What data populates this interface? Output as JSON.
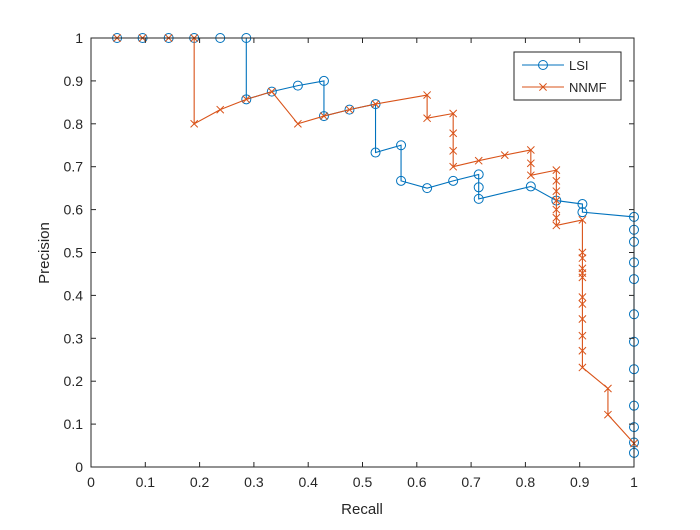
{
  "chart_data": {
    "type": "line",
    "title": "",
    "xlabel": "Recall",
    "ylabel": "Precision",
    "xlim": [
      0,
      1
    ],
    "ylim": [
      0,
      1
    ],
    "xticks": [
      "0",
      "0.1",
      "0.2",
      "0.3",
      "0.4",
      "0.5",
      "0.6",
      "0.7",
      "0.8",
      "0.9",
      "1"
    ],
    "yticks": [
      "0",
      "0.1",
      "0.2",
      "0.3",
      "0.4",
      "0.5",
      "0.6",
      "0.7",
      "0.8",
      "0.9",
      "1"
    ],
    "grid": false,
    "legend_position": "top-right",
    "series": [
      {
        "name": "LSI",
        "color": "#0072BD",
        "marker": "circle",
        "points": [
          [
            0.048,
            1.0
          ],
          [
            0.095,
            1.0
          ],
          [
            0.143,
            1.0
          ],
          [
            0.19,
            1.0
          ],
          [
            0.238,
            1.0
          ],
          [
            0.286,
            1.0
          ],
          [
            0.286,
            0.857
          ],
          [
            0.333,
            0.875
          ],
          [
            0.381,
            0.889
          ],
          [
            0.429,
            0.9
          ],
          [
            0.429,
            0.818
          ],
          [
            0.476,
            0.833
          ],
          [
            0.524,
            0.846
          ],
          [
            0.524,
            0.733
          ],
          [
            0.571,
            0.75
          ],
          [
            0.571,
            0.667
          ],
          [
            0.619,
            0.65
          ],
          [
            0.667,
            0.667
          ],
          [
            0.714,
            0.682
          ],
          [
            0.714,
            0.652
          ],
          [
            0.714,
            0.625
          ],
          [
            0.81,
            0.654
          ],
          [
            0.857,
            0.621
          ],
          [
            0.905,
            0.613
          ],
          [
            0.905,
            0.594
          ],
          [
            1.0,
            0.583
          ],
          [
            1.0,
            0.553
          ],
          [
            1.0,
            0.525
          ],
          [
            1.0,
            0.477
          ],
          [
            1.0,
            0.438
          ],
          [
            1.0,
            0.356
          ],
          [
            1.0,
            0.292
          ],
          [
            1.0,
            0.228
          ],
          [
            1.0,
            0.143
          ],
          [
            1.0,
            0.093
          ],
          [
            1.0,
            0.057
          ],
          [
            1.0,
            0.033
          ]
        ]
      },
      {
        "name": "NNMF",
        "color": "#D95319",
        "marker": "x",
        "points": [
          [
            0.048,
            1.0
          ],
          [
            0.095,
            1.0
          ],
          [
            0.143,
            1.0
          ],
          [
            0.19,
            1.0
          ],
          [
            0.19,
            0.8
          ],
          [
            0.238,
            0.833
          ],
          [
            0.286,
            0.857
          ],
          [
            0.333,
            0.875
          ],
          [
            0.381,
            0.8
          ],
          [
            0.429,
            0.818
          ],
          [
            0.476,
            0.833
          ],
          [
            0.524,
            0.846
          ],
          [
            0.619,
            0.867
          ],
          [
            0.619,
            0.813
          ],
          [
            0.667,
            0.824
          ],
          [
            0.667,
            0.778
          ],
          [
            0.667,
            0.737
          ],
          [
            0.667,
            0.7
          ],
          [
            0.714,
            0.714
          ],
          [
            0.762,
            0.727
          ],
          [
            0.81,
            0.739
          ],
          [
            0.81,
            0.708
          ],
          [
            0.81,
            0.68
          ],
          [
            0.857,
            0.692
          ],
          [
            0.857,
            0.667
          ],
          [
            0.857,
            0.643
          ],
          [
            0.857,
            0.621
          ],
          [
            0.857,
            0.6
          ],
          [
            0.857,
            0.581
          ],
          [
            0.857,
            0.563
          ],
          [
            0.905,
            0.576
          ],
          [
            0.905,
            0.5
          ],
          [
            0.905,
            0.487
          ],
          [
            0.905,
            0.463
          ],
          [
            0.905,
            0.452
          ],
          [
            0.905,
            0.442
          ],
          [
            0.905,
            0.396
          ],
          [
            0.905,
            0.38
          ],
          [
            0.905,
            0.345
          ],
          [
            0.905,
            0.306
          ],
          [
            0.905,
            0.271
          ],
          [
            0.905,
            0.232
          ],
          [
            0.952,
            0.183
          ],
          [
            0.952,
            0.122
          ],
          [
            1.0,
            0.055
          ]
        ]
      }
    ]
  }
}
